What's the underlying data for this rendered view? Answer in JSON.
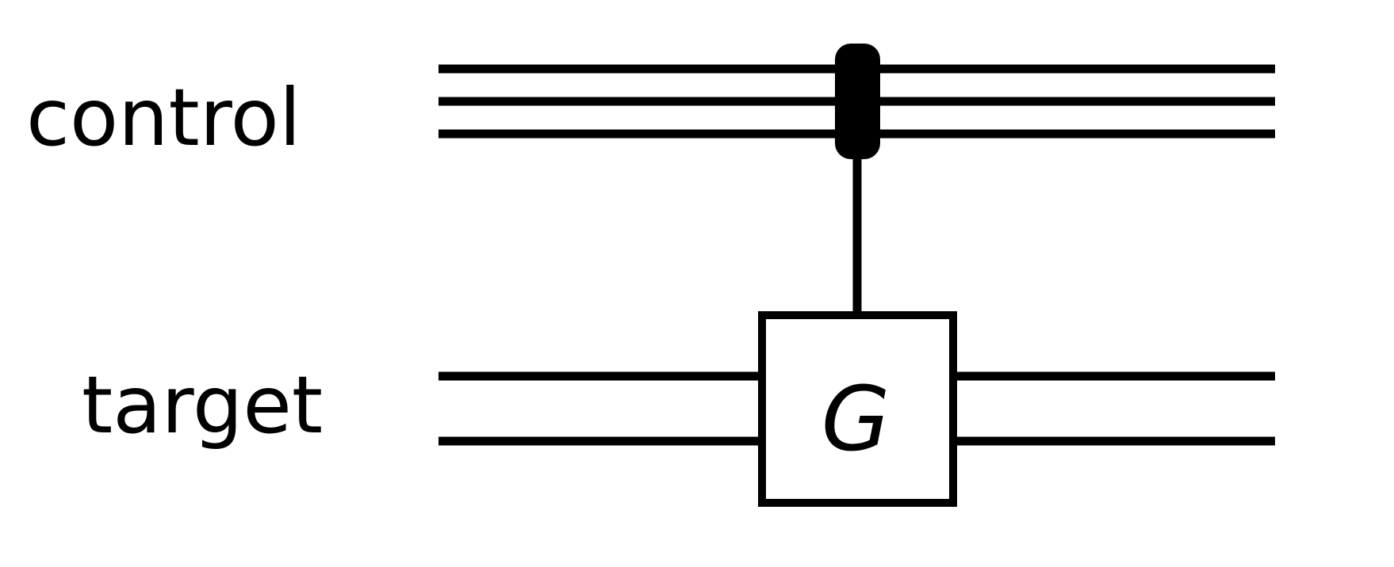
{
  "circuit": {
    "registers": [
      {
        "label": "control",
        "wires": 3
      },
      {
        "label": "target",
        "wires": 2
      }
    ],
    "gate": {
      "label": "G",
      "type": "controlled-gate"
    },
    "control_marker": "multi-wire-control-bar",
    "colors": {
      "stroke": "#000000",
      "background": "#ffffff"
    }
  }
}
